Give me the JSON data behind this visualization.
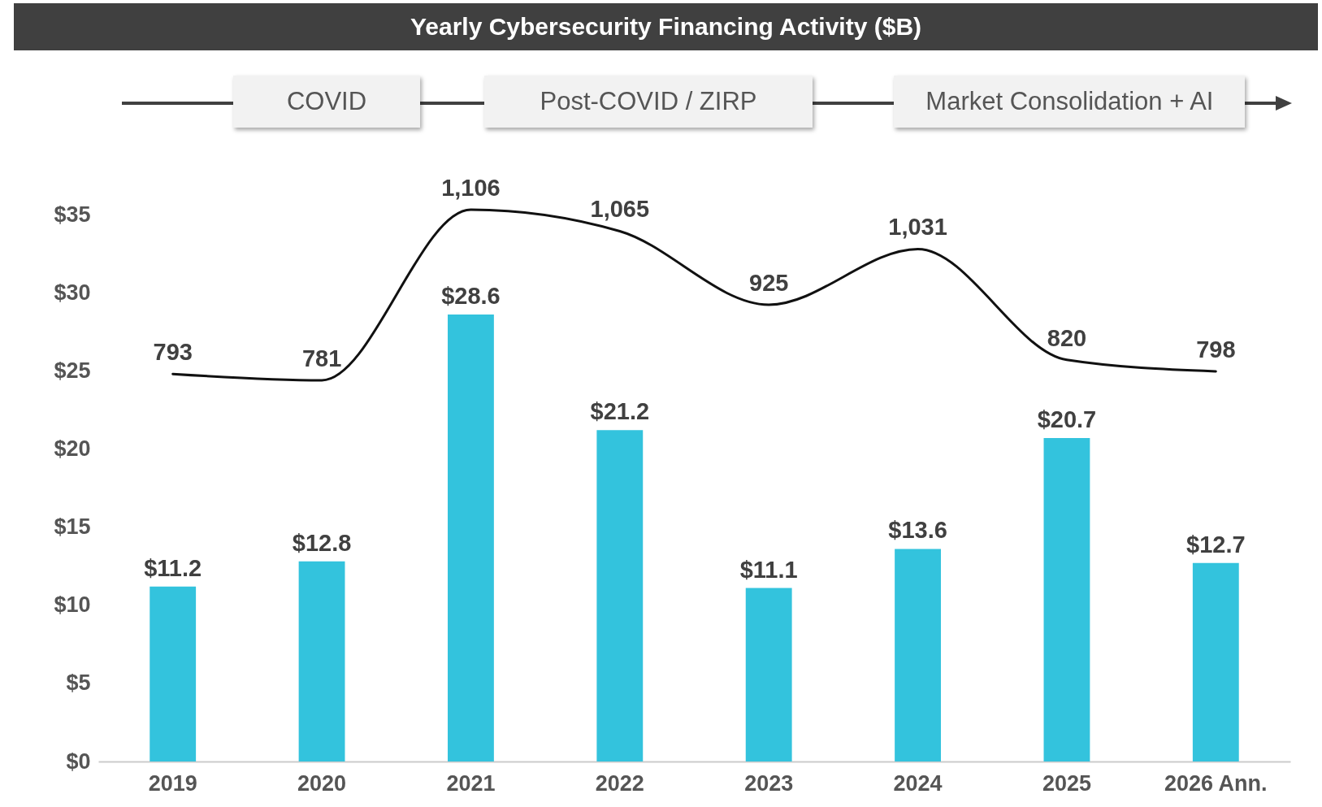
{
  "chart_data": {
    "type": "bar",
    "title": "Yearly Cybersecurity Financing Activity ($B)",
    "annotations": [
      "COVID",
      "Post-COVID / ZIRP",
      "Market Consolidation + AI"
    ],
    "categories": [
      "2019",
      "2020",
      "2021",
      "2022",
      "2023",
      "2024",
      "2025",
      "2026 Ann."
    ],
    "series": [
      {
        "color": "#33c3dd",
        "values": [
          11.2,
          12.8,
          28.6,
          21.2,
          11.1,
          13.6,
          20.7,
          12.7
        ],
        "value_labels": [
          "$11.2",
          "$12.8",
          "$28.6",
          "$21.2",
          "$11.1",
          "$13.6",
          "$20.7",
          "$12.7"
        ]
      },
      {
        "type": "line",
        "axis": "y2",
        "color": "#111111",
        "values": [
          793,
          781,
          1106,
          1065,
          925,
          1031,
          820,
          798
        ],
        "value_labels": [
          "793",
          "781",
          "1,106",
          "1,065",
          "925",
          "1,031",
          "820",
          "798"
        ]
      }
    ],
    "ylim": [
      0,
      35
    ],
    "yticks": [
      {
        "value": 0,
        "label": "$0"
      },
      {
        "value": 5,
        "label": "$5"
      },
      {
        "value": 10,
        "label": "$10"
      },
      {
        "value": 15,
        "label": "$15"
      },
      {
        "value": 20,
        "label": "$20"
      },
      {
        "value": 25,
        "label": "$25"
      },
      {
        "value": 30,
        "label": "$30"
      },
      {
        "value": 35,
        "label": "$35"
      }
    ],
    "tick_labels": "xy",
    "grid": false,
    "marker": "none",
    "line_style": "solid"
  }
}
